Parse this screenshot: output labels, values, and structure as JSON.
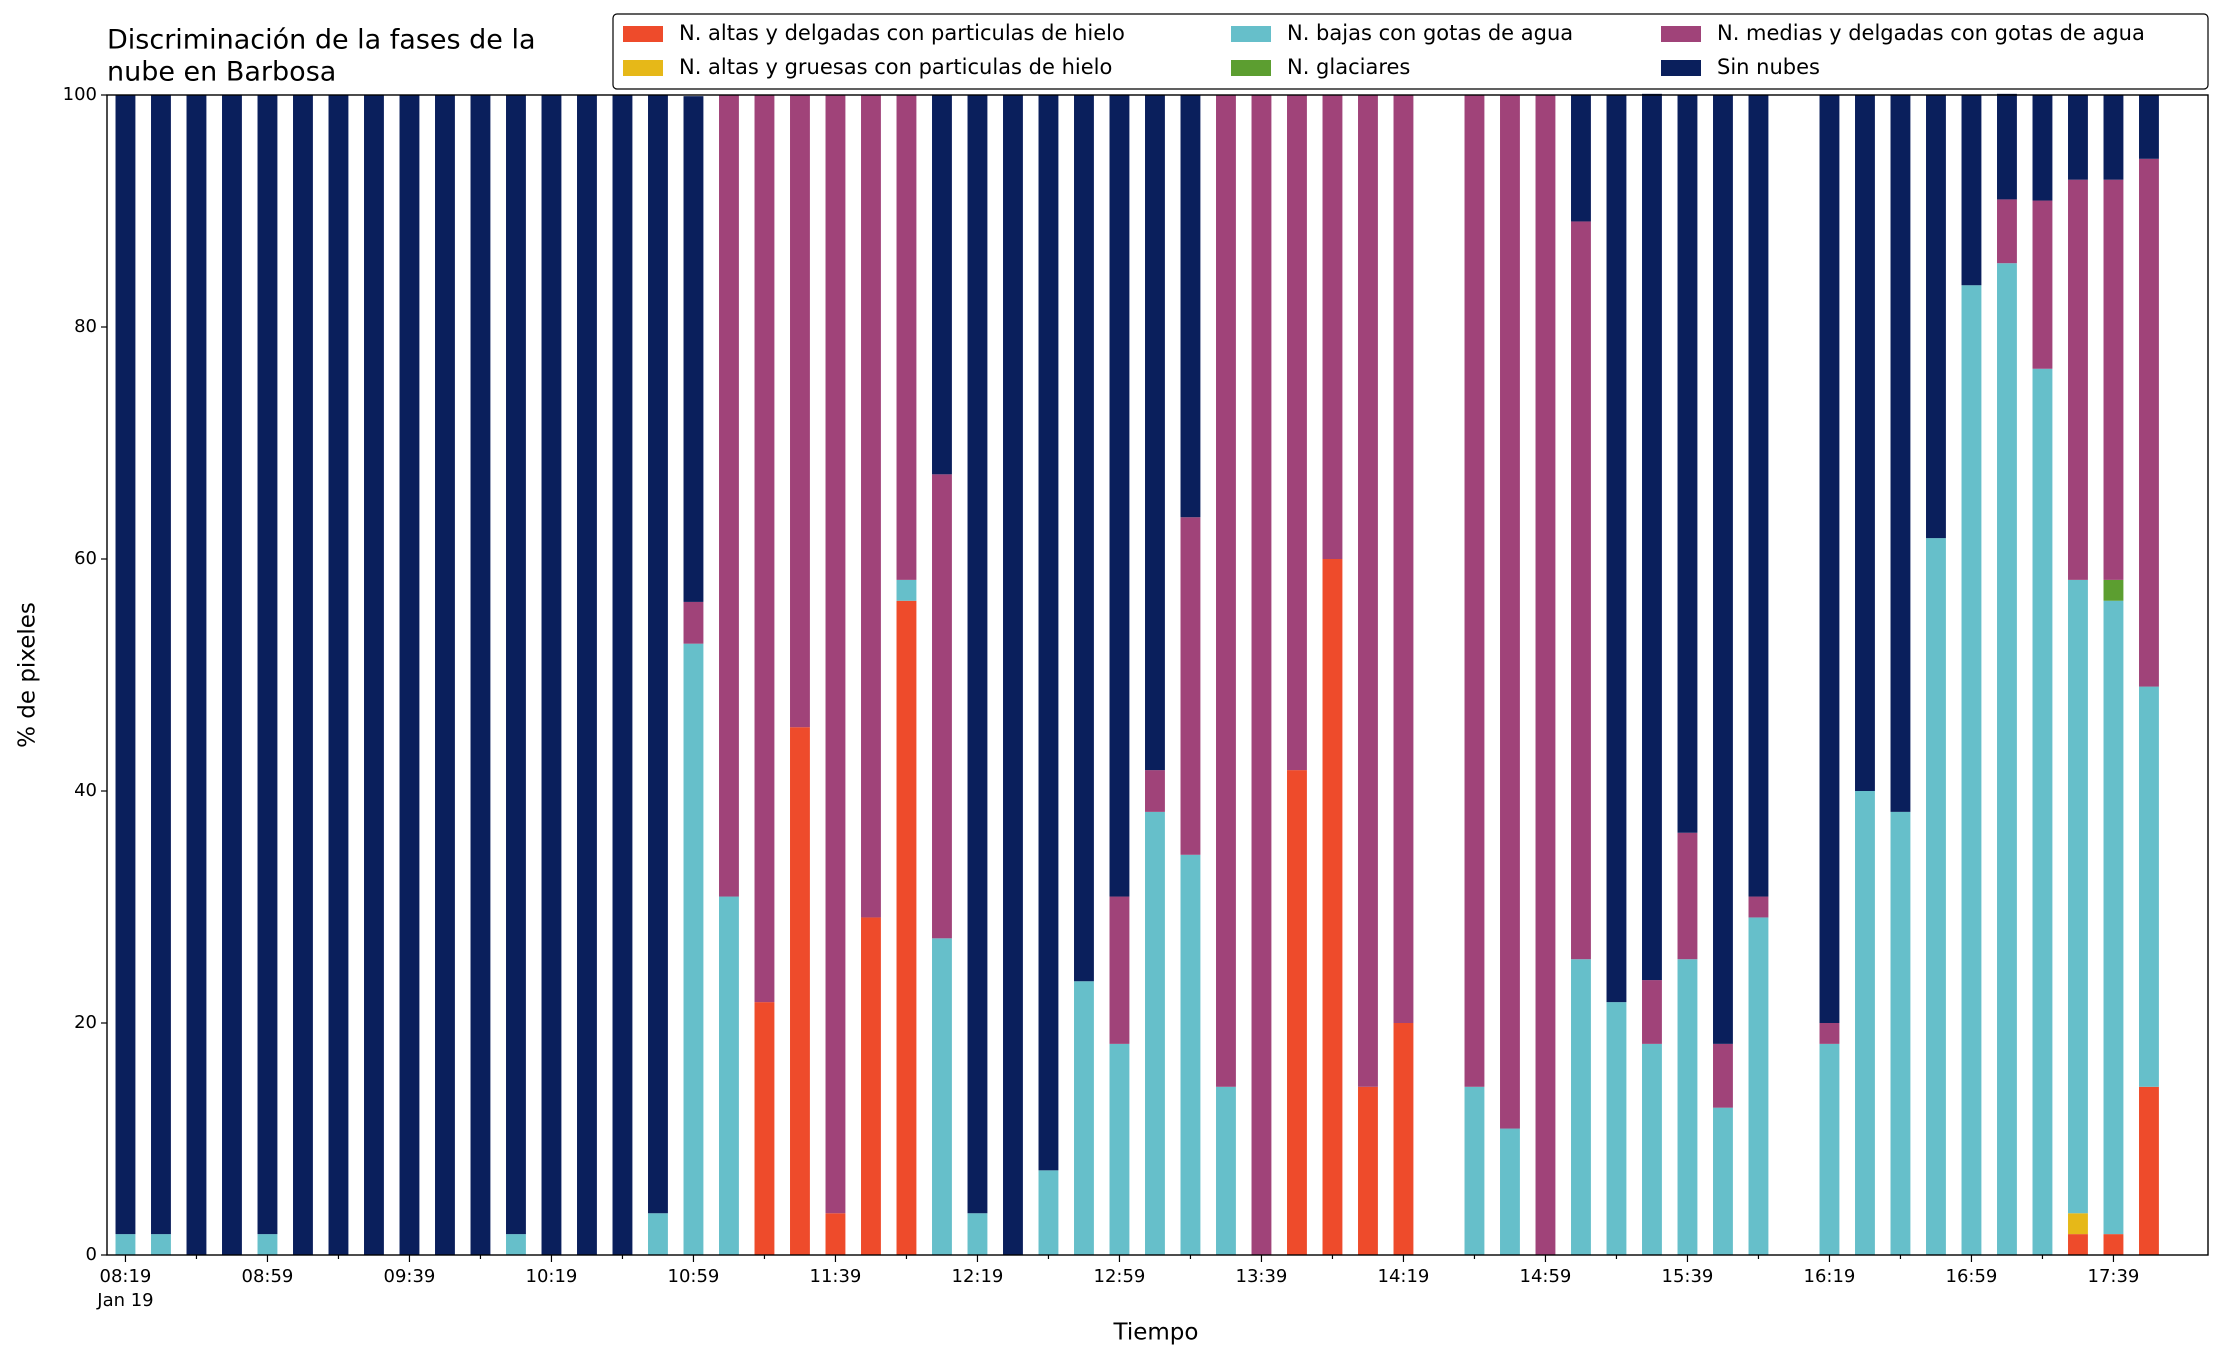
{
  "chart_data": {
    "type": "stacked_bar",
    "title": [
      "Discriminación de la fases de la",
      "nube en Barbosa"
    ],
    "xlabel": "Tiempo",
    "ylabel": "% de pixeles",
    "x_date_label": "Jan 19",
    "categories": [
      "08:19",
      null,
      null,
      null,
      "08:59",
      null,
      null,
      null,
      "09:39",
      null,
      null,
      null,
      "10:19",
      null,
      null,
      null,
      "10:59",
      null,
      null,
      null,
      "11:39",
      null,
      null,
      null,
      "12:19",
      null,
      null,
      null,
      "12:59",
      null,
      null,
      null,
      "13:39",
      null,
      null,
      null,
      "14:19",
      null,
      null,
      null,
      "14:59",
      null,
      null,
      null,
      "15:39",
      null,
      null,
      null,
      "16:19",
      null,
      null,
      null,
      "16:59",
      null,
      null,
      null,
      "17:39",
      null
    ],
    "series": [
      {
        "name": "N. altas y delgadas con particulas de hielo",
        "color": "#ee4b2b",
        "values": [
          0,
          0,
          0,
          0,
          0,
          0,
          0,
          0,
          0,
          0,
          0,
          0,
          0,
          0,
          0,
          0,
          0,
          0,
          21.8,
          45.5,
          3.6,
          29.1,
          56.4,
          0,
          0,
          0,
          0,
          0,
          0,
          0,
          0,
          0,
          0,
          41.8,
          60,
          14.5,
          20,
          0,
          0,
          0,
          0,
          0,
          0,
          0,
          0,
          0,
          0,
          0,
          0,
          0,
          0,
          0,
          0,
          0,
          0,
          1.8,
          1.8,
          14.5
        ]
      },
      {
        "name": "N. altas y gruesas con particulas de hielo",
        "color": "#e6b818",
        "values": [
          0,
          0,
          0,
          0,
          0,
          0,
          0,
          0,
          0,
          0,
          0,
          0,
          0,
          0,
          0,
          0,
          0,
          0,
          0,
          0,
          0,
          0,
          0,
          0,
          0,
          0,
          0,
          0,
          0,
          0,
          0,
          0,
          0,
          0,
          0,
          0,
          0,
          0,
          0,
          0,
          0,
          0,
          0,
          0,
          0,
          0,
          0,
          0,
          0,
          0,
          0,
          0,
          0,
          0,
          0,
          1.8,
          0,
          0
        ]
      },
      {
        "name": "N. bajas con gotas de agua",
        "color": "#66bfca",
        "values": [
          1.8,
          1.8,
          0,
          0,
          1.8,
          0,
          0,
          0,
          0,
          0,
          0,
          1.8,
          0,
          0,
          0,
          3.6,
          52.7,
          30.9,
          0,
          0,
          0,
          0,
          1.8,
          27.3,
          3.6,
          0,
          7.3,
          23.6,
          18.2,
          38.2,
          34.5,
          14.5,
          0,
          0,
          0,
          0,
          0,
          0,
          14.5,
          10.9,
          0,
          25.5,
          21.8,
          18.2,
          25.5,
          12.7,
          29.1,
          0,
          18.2,
          40,
          38.2,
          61.8,
          83.6,
          85.5,
          76.4,
          54.6,
          54.6,
          34.5
        ]
      },
      {
        "name": "N. glaciares",
        "color": "#5c9e30",
        "values": [
          0,
          0,
          0,
          0,
          0,
          0,
          0,
          0,
          0,
          0,
          0,
          0,
          0,
          0,
          0,
          0,
          0,
          0,
          0,
          0,
          0,
          0,
          0,
          0,
          0,
          0,
          0,
          0,
          0,
          0,
          0,
          0,
          0,
          0,
          0,
          0,
          0,
          0,
          0,
          0,
          0,
          0,
          0,
          0,
          0,
          0,
          0,
          0,
          0,
          0,
          0,
          0,
          0,
          0,
          0,
          0,
          1.8,
          0
        ]
      },
      {
        "name": "N. medias y delgadas con gotas de agua",
        "color": "#a04379",
        "values": [
          0,
          0,
          0,
          0,
          0,
          0,
          0,
          0,
          0,
          0,
          0,
          0,
          0,
          0,
          0,
          0,
          3.6,
          69.1,
          78.2,
          54.5,
          96.4,
          70.9,
          41.8,
          40,
          0,
          0,
          0,
          0,
          12.7,
          3.6,
          29.1,
          85.5,
          100,
          58.2,
          40,
          85.5,
          80,
          0,
          85.5,
          89.1,
          100,
          63.6,
          0,
          5.5,
          10.9,
          5.5,
          1.8,
          0,
          1.8,
          0,
          0,
          0,
          0,
          5.5,
          14.5,
          34.5,
          34.5,
          45.5
        ]
      },
      {
        "name": "Sin nubes",
        "color": "#0a1f5c",
        "values": [
          98.2,
          98.2,
          100,
          100,
          98.2,
          100,
          100,
          100,
          100,
          100,
          100,
          98.2,
          100,
          100,
          100,
          96.4,
          43.6,
          0,
          0,
          0,
          0,
          0,
          0,
          32.7,
          96.4,
          100,
          92.7,
          76.4,
          69.1,
          58.2,
          36.4,
          0,
          0,
          0,
          0,
          0,
          0,
          0,
          0,
          0,
          0,
          10.9,
          78.2,
          76.4,
          63.6,
          81.8,
          69.1,
          0,
          80,
          60,
          61.8,
          38.2,
          16.4,
          9.1,
          9.1,
          7.3,
          7.3,
          5.5
        ]
      }
    ],
    "ylim": [
      0,
      100
    ],
    "yticks": [
      0,
      20,
      40,
      60,
      80,
      100
    ],
    "legend": "upper right",
    "grid": false
  }
}
